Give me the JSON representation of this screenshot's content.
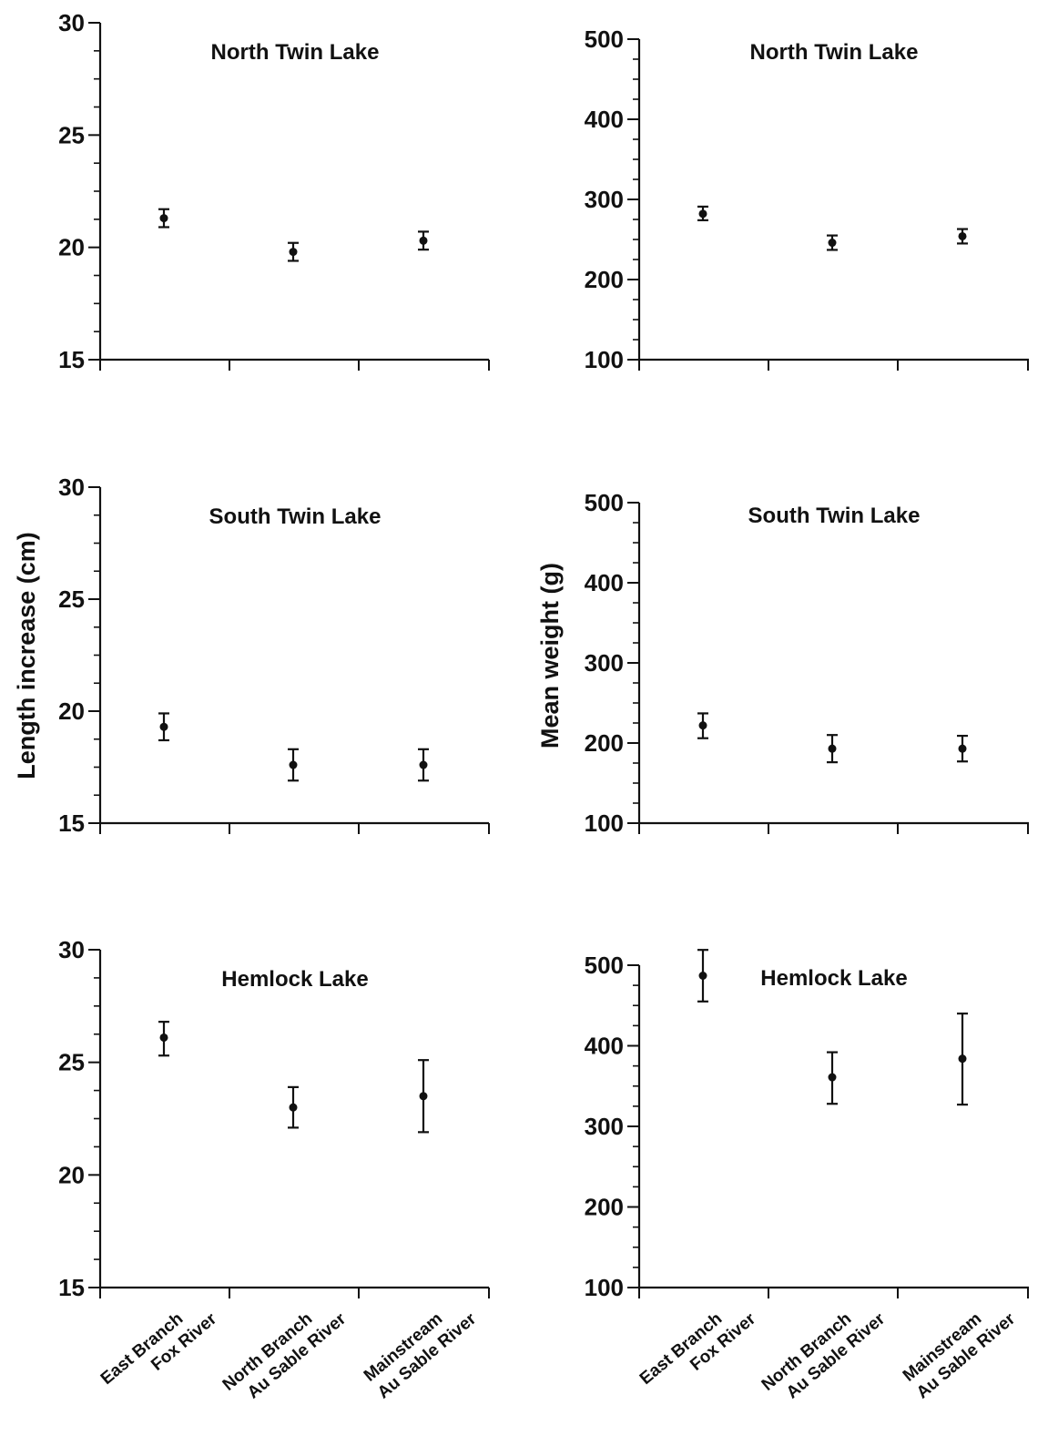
{
  "figure": {
    "ylabels": {
      "length": "Length increase (cm)",
      "weight": "Mean weight (g)"
    },
    "categories": [
      [
        "East Branch",
        "Fox River"
      ],
      [
        "North Branch",
        "Au Sable River"
      ],
      [
        "Mainstream",
        "Au Sable River"
      ]
    ]
  },
  "chart_data": [
    {
      "type": "scatter",
      "title": "North Twin Lake",
      "ylabel": "",
      "categories": [
        "East Branch Fox River",
        "North Branch Au Sable River",
        "Mainstream Au Sable River"
      ],
      "values": [
        21.3,
        19.8,
        20.3
      ],
      "error_low": [
        20.9,
        19.4,
        19.9
      ],
      "error_high": [
        21.7,
        20.2,
        20.7
      ],
      "ylim": [
        15,
        30
      ],
      "yticks": [
        15,
        20,
        25,
        30
      ]
    },
    {
      "type": "scatter",
      "title": "North Twin Lake",
      "ylabel": "",
      "categories": [
        "East Branch Fox River",
        "North Branch Au Sable River",
        "Mainstream Au Sable River"
      ],
      "values": [
        282,
        246,
        254
      ],
      "error_low": [
        274,
        237,
        245
      ],
      "error_high": [
        291,
        255,
        263
      ],
      "ylim": [
        100,
        500
      ],
      "yticks": [
        100,
        200,
        300,
        400,
        500
      ]
    },
    {
      "type": "scatter",
      "title": "South Twin Lake",
      "ylabel": "Length increase (cm)",
      "categories": [
        "East Branch Fox River",
        "North Branch Au Sable River",
        "Mainstream Au Sable River"
      ],
      "values": [
        19.3,
        17.6,
        17.6
      ],
      "error_low": [
        18.7,
        16.9,
        16.9
      ],
      "error_high": [
        19.9,
        18.3,
        18.3
      ],
      "ylim": [
        15,
        30
      ],
      "yticks": [
        15,
        20,
        25,
        30
      ]
    },
    {
      "type": "scatter",
      "title": "South Twin Lake",
      "ylabel": "Mean weight (g)",
      "categories": [
        "East Branch Fox River",
        "North Branch Au Sable River",
        "Mainstream Au Sable River"
      ],
      "values": [
        222,
        193,
        193
      ],
      "error_low": [
        206,
        176,
        177
      ],
      "error_high": [
        237,
        210,
        209
      ],
      "ylim": [
        100,
        500
      ],
      "yticks": [
        100,
        200,
        300,
        400,
        500
      ]
    },
    {
      "type": "scatter",
      "title": "Hemlock Lake",
      "ylabel": "",
      "categories": [
        "East Branch Fox River",
        "North Branch Au Sable River",
        "Mainstream Au Sable River"
      ],
      "values": [
        26.1,
        23.0,
        23.5
      ],
      "error_low": [
        25.3,
        22.1,
        21.9
      ],
      "error_high": [
        26.8,
        23.9,
        25.1
      ],
      "ylim": [
        15,
        30
      ],
      "yticks": [
        15,
        20,
        25,
        30
      ]
    },
    {
      "type": "scatter",
      "title": "Hemlock Lake",
      "ylabel": "",
      "categories": [
        "East Branch Fox River",
        "North Branch Au Sable River",
        "Mainstream Au Sable River"
      ],
      "values": [
        487,
        361,
        384
      ],
      "error_low": [
        455,
        328,
        327
      ],
      "error_high": [
        519,
        392,
        440
      ],
      "ylim": [
        100,
        500
      ],
      "yticks": [
        100,
        200,
        300,
        400,
        500
      ]
    }
  ]
}
